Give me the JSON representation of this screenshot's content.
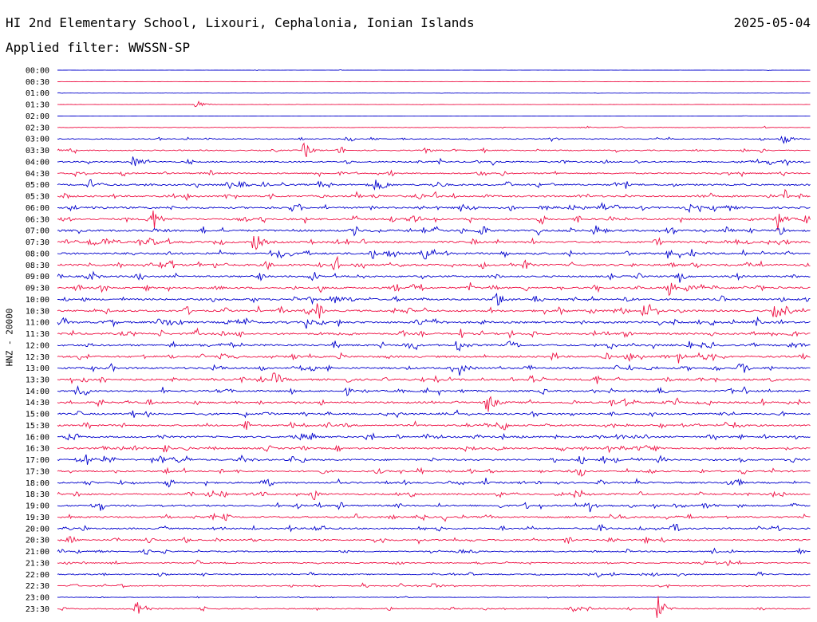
{
  "header": {
    "title": "HI 2nd Elementary School, Lixouri, Cephalonia, Ionian Islands",
    "date": "2025-05-04",
    "filter": "Applied filter: WWSSN-SP"
  },
  "colors": {
    "trace_a": "#0000cc",
    "trace_b": "#ee1144"
  },
  "chart_data": {
    "type": "line",
    "ylabel": "HNZ - 20000",
    "row_labels": [
      "00:00",
      "00:30",
      "01:00",
      "01:30",
      "02:00",
      "02:30",
      "03:00",
      "03:30",
      "04:00",
      "04:30",
      "05:00",
      "05:30",
      "06:00",
      "06:30",
      "07:00",
      "07:30",
      "08:00",
      "08:30",
      "09:00",
      "09:30",
      "10:00",
      "10:30",
      "11:00",
      "11:30",
      "12:00",
      "12:30",
      "13:00",
      "13:30",
      "14:00",
      "14:30",
      "15:00",
      "15:30",
      "16:00",
      "16:30",
      "17:00",
      "17:30",
      "18:00",
      "18:30",
      "19:00",
      "19:30",
      "20:00",
      "20:30",
      "21:00",
      "21:30",
      "22:00",
      "22:30",
      "23:00",
      "23:30"
    ],
    "noise_level": [
      0.2,
      0.2,
      0.2,
      0.2,
      0.2,
      0.5,
      0.9,
      1.0,
      1.3,
      1.3,
      1.6,
      1.6,
      1.7,
      1.7,
      1.8,
      1.8,
      1.8,
      1.8,
      1.6,
      1.7,
      1.7,
      1.8,
      1.8,
      1.7,
      1.7,
      1.7,
      1.7,
      1.7,
      1.6,
      1.6,
      1.6,
      1.6,
      1.6,
      1.6,
      1.6,
      1.5,
      1.5,
      1.5,
      1.5,
      1.5,
      1.5,
      1.4,
      1.2,
      1.1,
      1.1,
      1.0,
      0.5,
      1.0
    ],
    "events": [
      {
        "row": 3,
        "minute": 5.5,
        "amplitude": 8
      },
      {
        "row": 6,
        "minute": 28.8,
        "amplitude": 12
      },
      {
        "row": 7,
        "minute": 9.8,
        "amplitude": 9
      },
      {
        "row": 8,
        "minute": 3.0,
        "amplitude": 9
      },
      {
        "row": 10,
        "minute": 12.6,
        "amplitude": 8
      },
      {
        "row": 13,
        "minute": 3.8,
        "amplitude": 11
      },
      {
        "row": 13,
        "minute": 28.7,
        "amplitude": 9
      },
      {
        "row": 15,
        "minute": 7.8,
        "amplitude": 16
      },
      {
        "row": 19,
        "minute": 25.0,
        "amplitude": 8
      },
      {
        "row": 20,
        "minute": 17.4,
        "amplitude": 15
      },
      {
        "row": 21,
        "minute": 23.3,
        "amplitude": 10
      },
      {
        "row": 21,
        "minute": 28.5,
        "amplitude": 7
      },
      {
        "row": 22,
        "minute": 9.9,
        "amplitude": 7
      },
      {
        "row": 22,
        "minute": 14.3,
        "amplitude": 6
      },
      {
        "row": 24,
        "minute": 15.9,
        "amplitude": 11
      },
      {
        "row": 25,
        "minute": 30.0,
        "amplitude": 14
      },
      {
        "row": 26,
        "minute": 16.0,
        "amplitude": 9
      },
      {
        "row": 27,
        "minute": 8.6,
        "amplitude": 10
      },
      {
        "row": 29,
        "minute": 17.1,
        "amplitude": 16
      },
      {
        "row": 34,
        "minute": 1.1,
        "amplitude": 8
      },
      {
        "row": 38,
        "minute": 21.2,
        "amplitude": 8
      },
      {
        "row": 47,
        "minute": 3.1,
        "amplitude": 18
      },
      {
        "row": 47,
        "minute": 23.9,
        "amplitude": 18
      }
    ]
  }
}
